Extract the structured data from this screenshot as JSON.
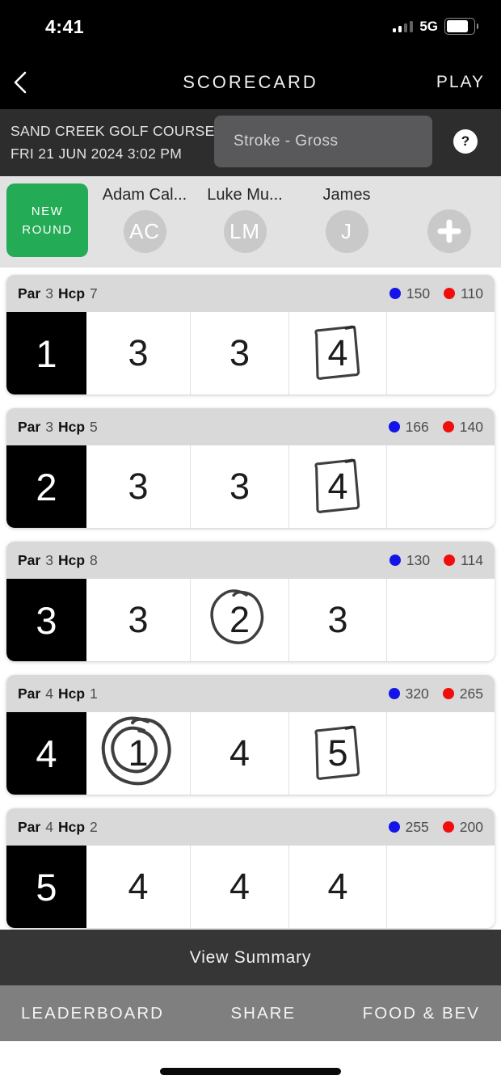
{
  "status_bar": {
    "time": "4:41",
    "network": "5G"
  },
  "nav": {
    "title": "SCORECARD",
    "play_label": "PLAY",
    "back_icon": "chevron-left-icon"
  },
  "round_info": {
    "course_name": "SAND CREEK GOLF COURSE",
    "datetime": "FRI 21 JUN 2024 3:02 PM",
    "scoring_mode": "Stroke - Gross",
    "help_icon": "question-mark-icon",
    "help_glyph": "?"
  },
  "players_bar": {
    "new_round_label": "NEW ROUND",
    "players": [
      {
        "name": "Adam Cal...",
        "initials": "AC"
      },
      {
        "name": "Luke Mu...",
        "initials": "LM"
      },
      {
        "name": "James",
        "initials": "J"
      }
    ],
    "add_player_icon": "plus-icon"
  },
  "labels": {
    "par": "Par",
    "hcp": "Hcp"
  },
  "holes": [
    {
      "hole": "1",
      "par": "3",
      "hcp": "7",
      "blue_distance": "150",
      "red_distance": "110",
      "scores": [
        {
          "value": "3",
          "mark": "none"
        },
        {
          "value": "3",
          "mark": "none"
        },
        {
          "value": "4",
          "mark": "square"
        },
        {
          "value": "",
          "mark": "none"
        }
      ]
    },
    {
      "hole": "2",
      "par": "3",
      "hcp": "5",
      "blue_distance": "166",
      "red_distance": "140",
      "scores": [
        {
          "value": "3",
          "mark": "none"
        },
        {
          "value": "3",
          "mark": "none"
        },
        {
          "value": "4",
          "mark": "square"
        },
        {
          "value": "",
          "mark": "none"
        }
      ]
    },
    {
      "hole": "3",
      "par": "3",
      "hcp": "8",
      "blue_distance": "130",
      "red_distance": "114",
      "scores": [
        {
          "value": "3",
          "mark": "none"
        },
        {
          "value": "2",
          "mark": "circle"
        },
        {
          "value": "3",
          "mark": "none"
        },
        {
          "value": "",
          "mark": "none"
        }
      ]
    },
    {
      "hole": "4",
      "par": "4",
      "hcp": "1",
      "blue_distance": "320",
      "red_distance": "265",
      "scores": [
        {
          "value": "1",
          "mark": "double-circle"
        },
        {
          "value": "4",
          "mark": "none"
        },
        {
          "value": "5",
          "mark": "square"
        },
        {
          "value": "",
          "mark": "none"
        }
      ]
    },
    {
      "hole": "5",
      "par": "4",
      "hcp": "2",
      "blue_distance": "255",
      "red_distance": "200",
      "scores": [
        {
          "value": "4",
          "mark": "none"
        },
        {
          "value": "4",
          "mark": "none"
        },
        {
          "value": "4",
          "mark": "none"
        },
        {
          "value": "",
          "mark": "none"
        }
      ]
    }
  ],
  "footer": {
    "view_summary": "View Summary",
    "tabs": [
      "LEADERBOARD",
      "SHARE",
      "FOOD & BEV"
    ]
  },
  "colors": {
    "accent_green": "#23ab56",
    "tee_blue": "#1414e8",
    "tee_red": "#f20d0d",
    "hole_header_gray": "#d9d9d9",
    "summary_bar": "#363636",
    "tabs_bar_gray": "#7f7f7f"
  }
}
